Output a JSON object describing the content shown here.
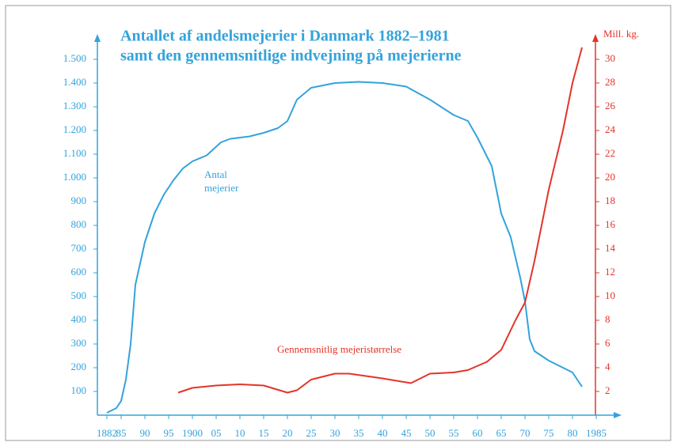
{
  "chart_data": {
    "type": "line",
    "title": [
      "Antallet af andelsmejerier i Danmark 1882–1981",
      "samt den gennemsnitlige indvejning på mejerierne"
    ],
    "y2_label": "Mill. kg.",
    "xlim": [
      1880,
      1990
    ],
    "xticks": [
      1882,
      {
        "value": 1885,
        "label": "85"
      },
      {
        "value": 1890,
        "label": "90"
      },
      {
        "value": 1895,
        "label": "95"
      },
      1900,
      {
        "value": 1905,
        "label": "05"
      },
      {
        "value": 1910,
        "label": "10"
      },
      {
        "value": 1915,
        "label": "15"
      },
      {
        "value": 1920,
        "label": "20"
      },
      {
        "value": 1925,
        "label": "25"
      },
      {
        "value": 1930,
        "label": "30"
      },
      {
        "value": 1935,
        "label": "35"
      },
      {
        "value": 1940,
        "label": "40"
      },
      {
        "value": 1945,
        "label": "45"
      },
      {
        "value": 1950,
        "label": "50"
      },
      {
        "value": 1955,
        "label": "55"
      },
      {
        "value": 1960,
        "label": "60"
      },
      {
        "value": 1965,
        "label": "65"
      },
      {
        "value": 1970,
        "label": "70"
      },
      {
        "value": 1975,
        "label": "75"
      },
      {
        "value": 1980,
        "label": "80"
      },
      1985
    ],
    "ylim": [
      0,
      1600
    ],
    "yticks": [
      100,
      200,
      300,
      400,
      500,
      600,
      700,
      800,
      900,
      {
        "value": 1000,
        "label": "1.000"
      },
      {
        "value": 1100,
        "label": "1.100"
      },
      {
        "value": 1200,
        "label": "1.200"
      },
      {
        "value": 1300,
        "label": "1.300"
      },
      {
        "value": 1400,
        "label": "1.400"
      },
      {
        "value": 1500,
        "label": "1.500"
      }
    ],
    "y2lim": [
      0,
      32
    ],
    "y2ticks": [
      2,
      4,
      6,
      8,
      10,
      12,
      14,
      16,
      18,
      20,
      22,
      24,
      26,
      28,
      30
    ],
    "grid": false,
    "series": [
      {
        "label": [
          "Antal",
          "mejerier"
        ],
        "color": "#33a3dc",
        "axis": "y",
        "x": [
          1882,
          1884,
          1885,
          1886,
          1887,
          1888,
          1890,
          1892,
          1894,
          1896,
          1898,
          1900,
          1903,
          1906,
          1908,
          1912,
          1915,
          1918,
          1920,
          1922,
          1925,
          1930,
          1935,
          1940,
          1945,
          1950,
          1955,
          1958,
          1960,
          1963,
          1965,
          1967,
          1969,
          1970,
          1971,
          1972,
          1975,
          1978,
          1980,
          1982
        ],
        "values": [
          10,
          30,
          60,
          150,
          300,
          550,
          730,
          850,
          930,
          990,
          1040,
          1070,
          1095,
          1150,
          1165,
          1175,
          1190,
          1210,
          1240,
          1330,
          1380,
          1400,
          1405,
          1400,
          1385,
          1330,
          1265,
          1240,
          1170,
          1050,
          850,
          750,
          580,
          480,
          320,
          270,
          230,
          200,
          180,
          120
        ]
      },
      {
        "label": [
          "Gennemsnitlig mejeristørrelse"
        ],
        "color": "#e3342a",
        "axis": "y2",
        "x": [
          1897,
          1900,
          1905,
          1910,
          1915,
          1920,
          1922,
          1925,
          1930,
          1933,
          1940,
          1946,
          1950,
          1955,
          1958,
          1962,
          1965,
          1968,
          1970,
          1972,
          1975,
          1978,
          1980,
          1982
        ],
        "values": [
          1.9,
          2.3,
          2.5,
          2.6,
          2.5,
          1.9,
          2.1,
          3.0,
          3.5,
          3.5,
          3.1,
          2.7,
          3.5,
          3.6,
          3.8,
          4.5,
          5.5,
          8,
          9.5,
          13,
          19,
          24,
          28,
          31
        ]
      }
    ]
  }
}
